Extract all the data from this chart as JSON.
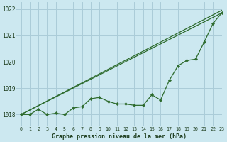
{
  "title": "Graphe pression niveau de la mer (hPa)",
  "background_color": "#cce8f0",
  "grid_color": "#aaccd8",
  "line_color": "#2d6b2d",
  "xlim": [
    -0.5,
    23
  ],
  "ylim": [
    1017.55,
    1022.25
  ],
  "yticks": [
    1018,
    1019,
    1020,
    1021,
    1022
  ],
  "ytick_labels": [
    "1018",
    "1019",
    "1020",
    "1021",
    "1022"
  ],
  "xticks": [
    0,
    1,
    2,
    3,
    4,
    5,
    6,
    7,
    8,
    9,
    10,
    11,
    12,
    13,
    14,
    15,
    16,
    17,
    18,
    19,
    20,
    21,
    22,
    23
  ],
  "line1_x": [
    0,
    23
  ],
  "line1_y": [
    1018.0,
    1021.85
  ],
  "line2_x": [
    0,
    23
  ],
  "line2_y": [
    1018.0,
    1021.95
  ],
  "data_x": [
    0,
    1,
    2,
    3,
    4,
    5,
    6,
    7,
    8,
    9,
    10,
    11,
    12,
    13,
    14,
    15,
    16,
    17,
    18,
    19,
    20,
    21,
    22,
    23
  ],
  "data_y": [
    1018.0,
    1018.0,
    1018.2,
    1018.0,
    1018.05,
    1018.0,
    1018.25,
    1018.3,
    1018.6,
    1018.65,
    1018.5,
    1018.4,
    1018.4,
    1018.35,
    1018.35,
    1018.75,
    1018.55,
    1019.3,
    1019.85,
    1020.05,
    1020.1,
    1020.75,
    1021.45,
    1021.85
  ]
}
